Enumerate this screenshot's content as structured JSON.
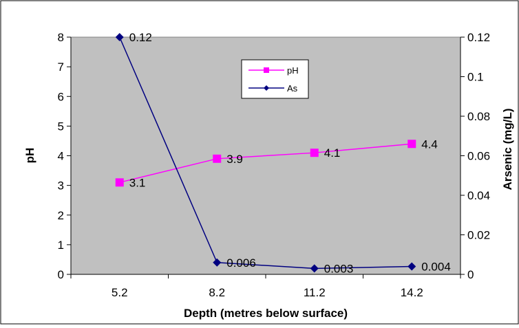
{
  "chart_data": {
    "type": "line",
    "title": "",
    "xlabel": "Depth (metres below surface)",
    "ylabel": "pH",
    "y2label": "Arsenic (mg/L)",
    "categories": [
      "5.2",
      "8.2",
      "11.2",
      "14.2"
    ],
    "ylim": [
      0,
      8
    ],
    "y2lim": [
      0,
      0.12
    ],
    "yticks": [
      "0",
      "1",
      "2",
      "3",
      "4",
      "5",
      "6",
      "7",
      "8"
    ],
    "y2ticks": [
      "0",
      "0.02",
      "0.04",
      "0.06",
      "0.08",
      "0.1",
      "0.12"
    ],
    "grid": false,
    "legend_position": "top-center",
    "plot_background": "#c0c0c0",
    "series": [
      {
        "name": "pH",
        "axis": "left",
        "color": "#ff00ff",
        "marker": "square",
        "values": [
          3.1,
          3.9,
          4.1,
          4.4
        ],
        "labels": [
          "3.1",
          "3.9",
          "4.1",
          "4.4"
        ]
      },
      {
        "name": "As",
        "axis": "right",
        "color": "#000080",
        "marker": "diamond",
        "values": [
          0.12,
          0.006,
          0.003,
          0.004
        ],
        "labels": [
          "0.12",
          "0.006",
          "0.003",
          "0.004"
        ]
      }
    ]
  }
}
